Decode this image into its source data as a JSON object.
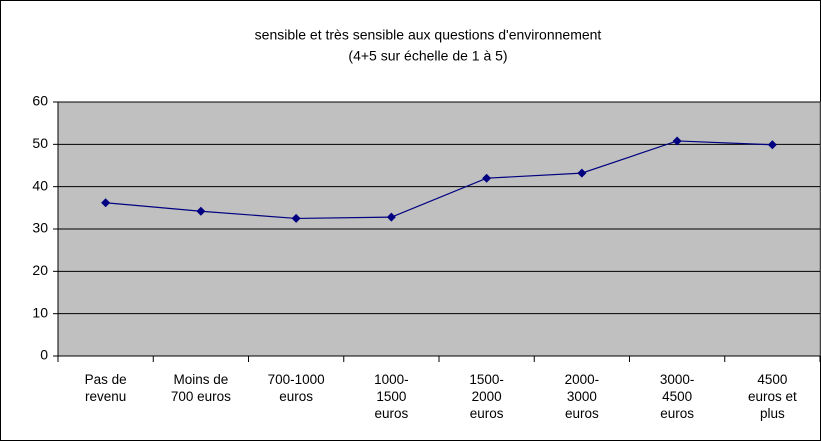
{
  "chart_data": {
    "type": "line",
    "title": "sensible et très sensible aux questions d'environnement",
    "subtitle": "(4+5 sur échelle de 1 à 5)",
    "categories": [
      "Pas de revenu",
      "Moins de 700 euros",
      "700-1000 euros",
      "1000-1500 euros",
      "1500-2000 euros",
      "2000-3000 euros",
      "3000-4500 euros",
      "4500 euros et plus"
    ],
    "series": [
      {
        "name": "sensible et très sensible",
        "color": "#000080",
        "values": [
          36.2,
          34.2,
          32.5,
          32.8,
          42.0,
          43.2,
          50.8,
          49.9
        ]
      }
    ],
    "ylim": [
      0,
      60
    ],
    "yticks": [
      0,
      10,
      20,
      30,
      40,
      50,
      60
    ],
    "grid": true,
    "plot_background": "#c0c0c0"
  }
}
